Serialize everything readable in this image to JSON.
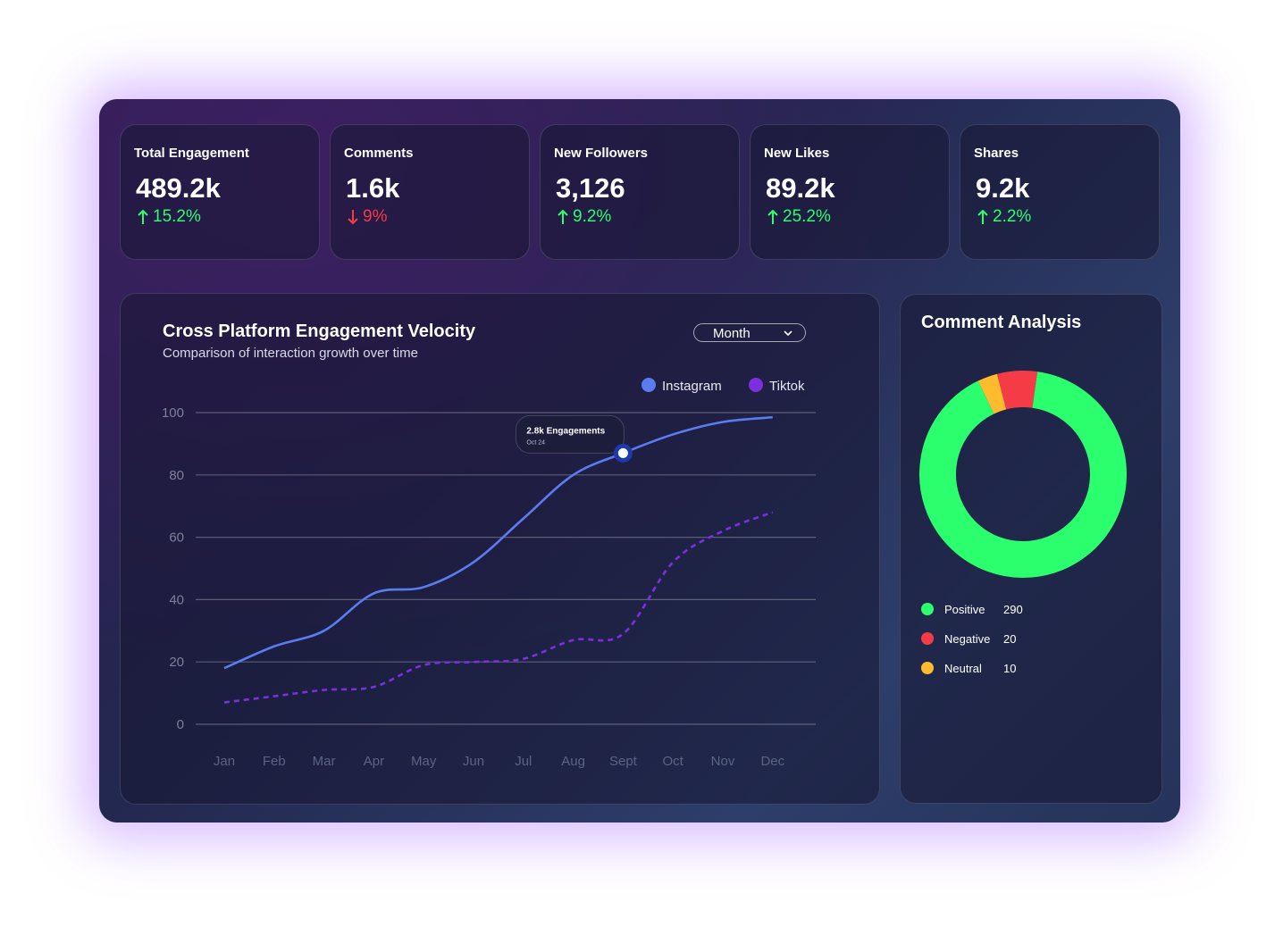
{
  "kpis": [
    {
      "label": "Total Engagement",
      "value": "489.2k",
      "change": "15.2%",
      "trend": "up"
    },
    {
      "label": "Comments",
      "value": "1.6k",
      "change": "9%",
      "trend": "down"
    },
    {
      "label": "New Followers",
      "value": "3,126",
      "change": "9.2%",
      "trend": "up"
    },
    {
      "label": "New Likes",
      "value": "89.2k",
      "change": "25.2%",
      "trend": "up"
    },
    {
      "label": "Shares",
      "value": "9.2k",
      "change": "2.2%",
      "trend": "up"
    }
  ],
  "engagement_chart": {
    "type": "line",
    "title": "Cross Platform Engagement Velocity",
    "subtitle": "Comparison of interaction growth over time",
    "period_selector": "Month",
    "categories": [
      "Jan",
      "Feb",
      "Mar",
      "Apr",
      "May",
      "Jun",
      "Jul",
      "Aug",
      "Sept",
      "Oct",
      "Nov",
      "Dec"
    ],
    "series": [
      {
        "name": "Instagram",
        "color": "#5b7cf0",
        "style": "solid",
        "values": [
          18,
          25,
          30,
          42,
          44,
          52,
          66,
          80,
          87,
          93,
          97,
          98.5
        ]
      },
      {
        "name": "Tiktok",
        "color": "#7b2fe0",
        "style": "dashed",
        "values": [
          7,
          9,
          11,
          12,
          19,
          20,
          21,
          27,
          29,
          52,
          62,
          68
        ]
      }
    ],
    "ylim": [
      0,
      100
    ],
    "yticks": [
      0,
      20,
      40,
      60,
      80,
      100
    ],
    "grid": true,
    "annotation": {
      "title": "2.8k Engagements",
      "subtitle": "Oct 24"
    }
  },
  "comment_analysis": {
    "type": "donut",
    "title": "Comment Analysis",
    "categories": [
      "Positive",
      "Negative",
      "Neutral"
    ],
    "values": [
      290,
      20,
      10
    ],
    "colors": [
      "#2bff6e",
      "#f53c46",
      "#fdbb2d"
    ]
  }
}
